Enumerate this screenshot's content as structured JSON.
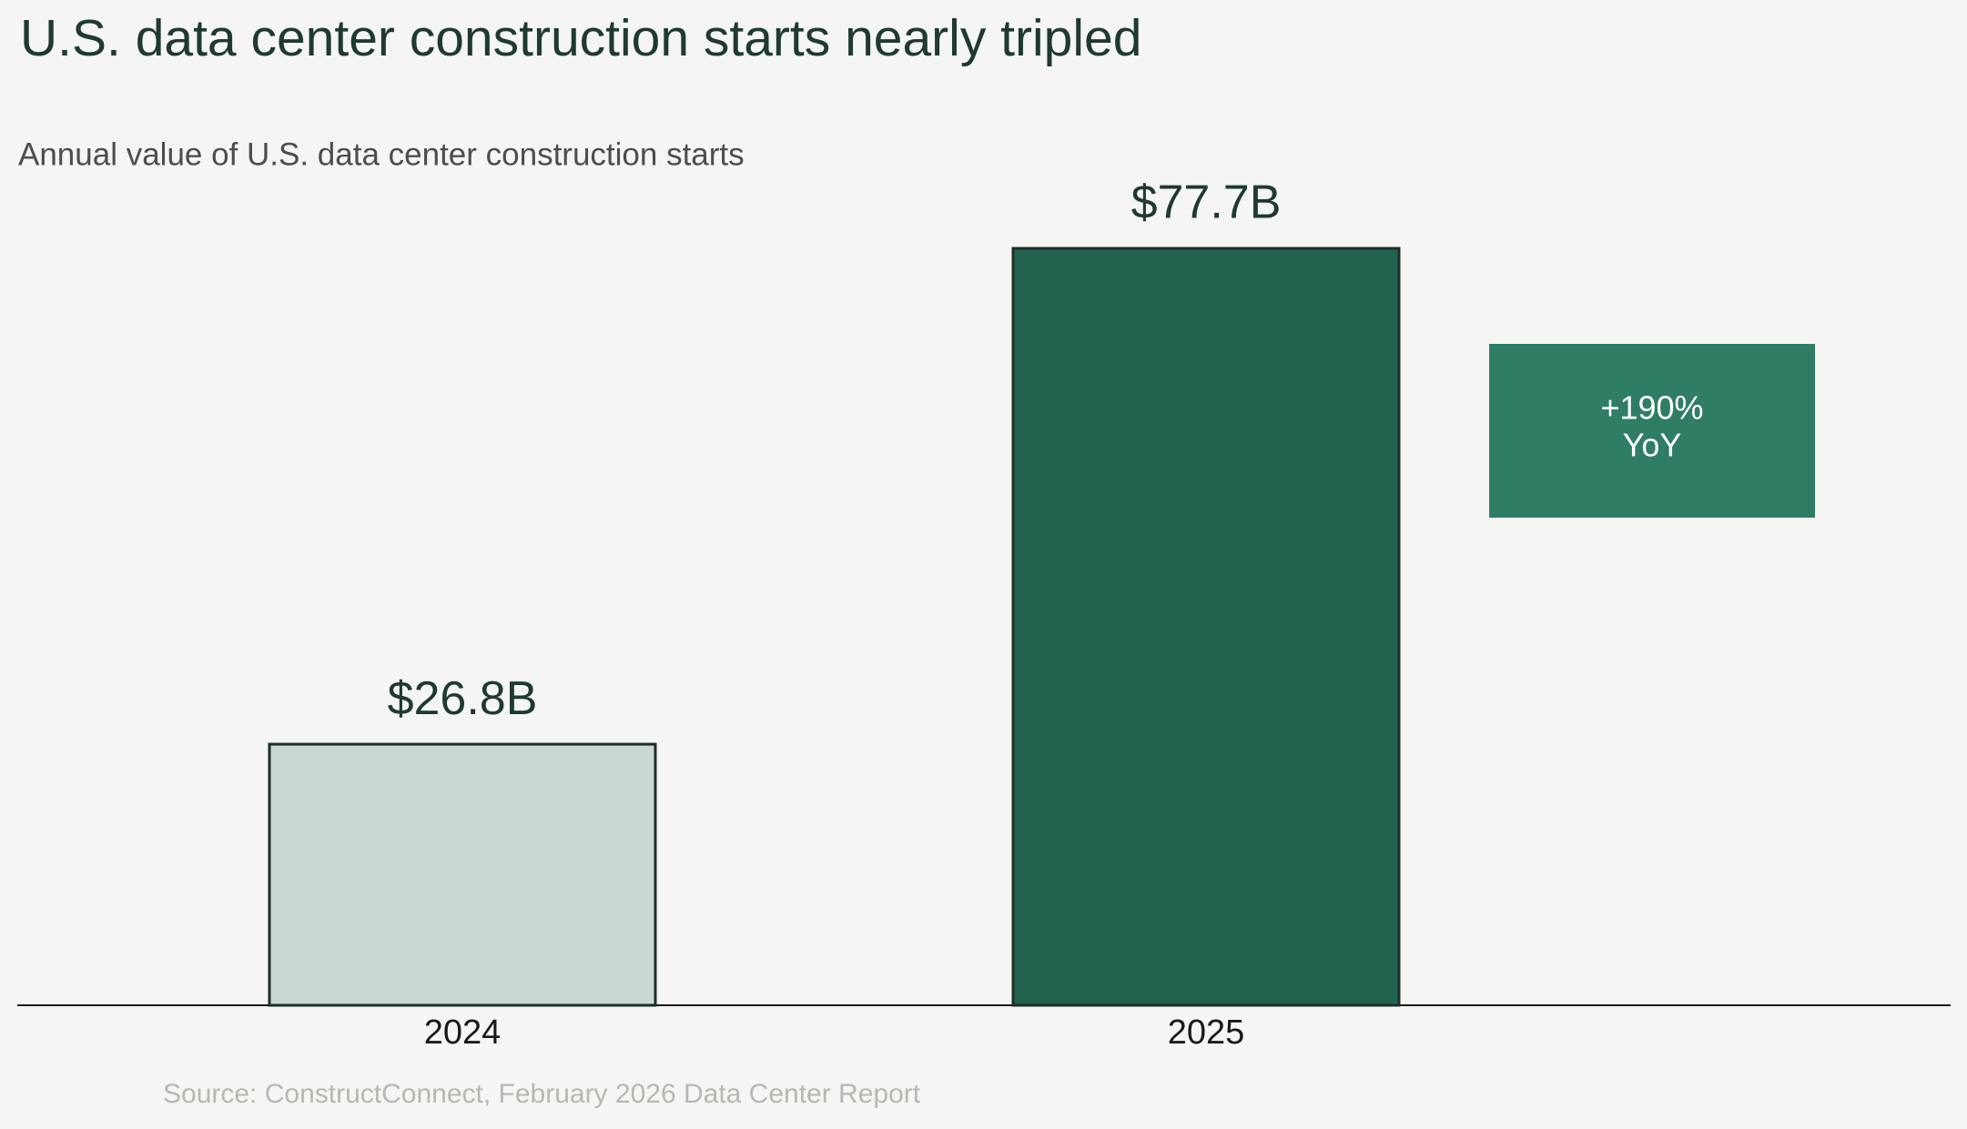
{
  "chart_data": {
    "type": "bar",
    "title": "U.S. data center construction starts nearly tripled",
    "subtitle": "Annual value of U.S. data center construction starts",
    "categories": [
      "2024",
      "2025"
    ],
    "values": [
      26.8,
      77.7
    ],
    "value_labels": [
      "$26.8B",
      "$77.7B"
    ],
    "colors": [
      "#cbd8d1",
      "#226350"
    ],
    "annotation": [
      "+190%",
      "YoY"
    ],
    "annotation_color": "#2f7d65",
    "source": "Source: ConstructConnect, February 2026 Data Center Report"
  }
}
